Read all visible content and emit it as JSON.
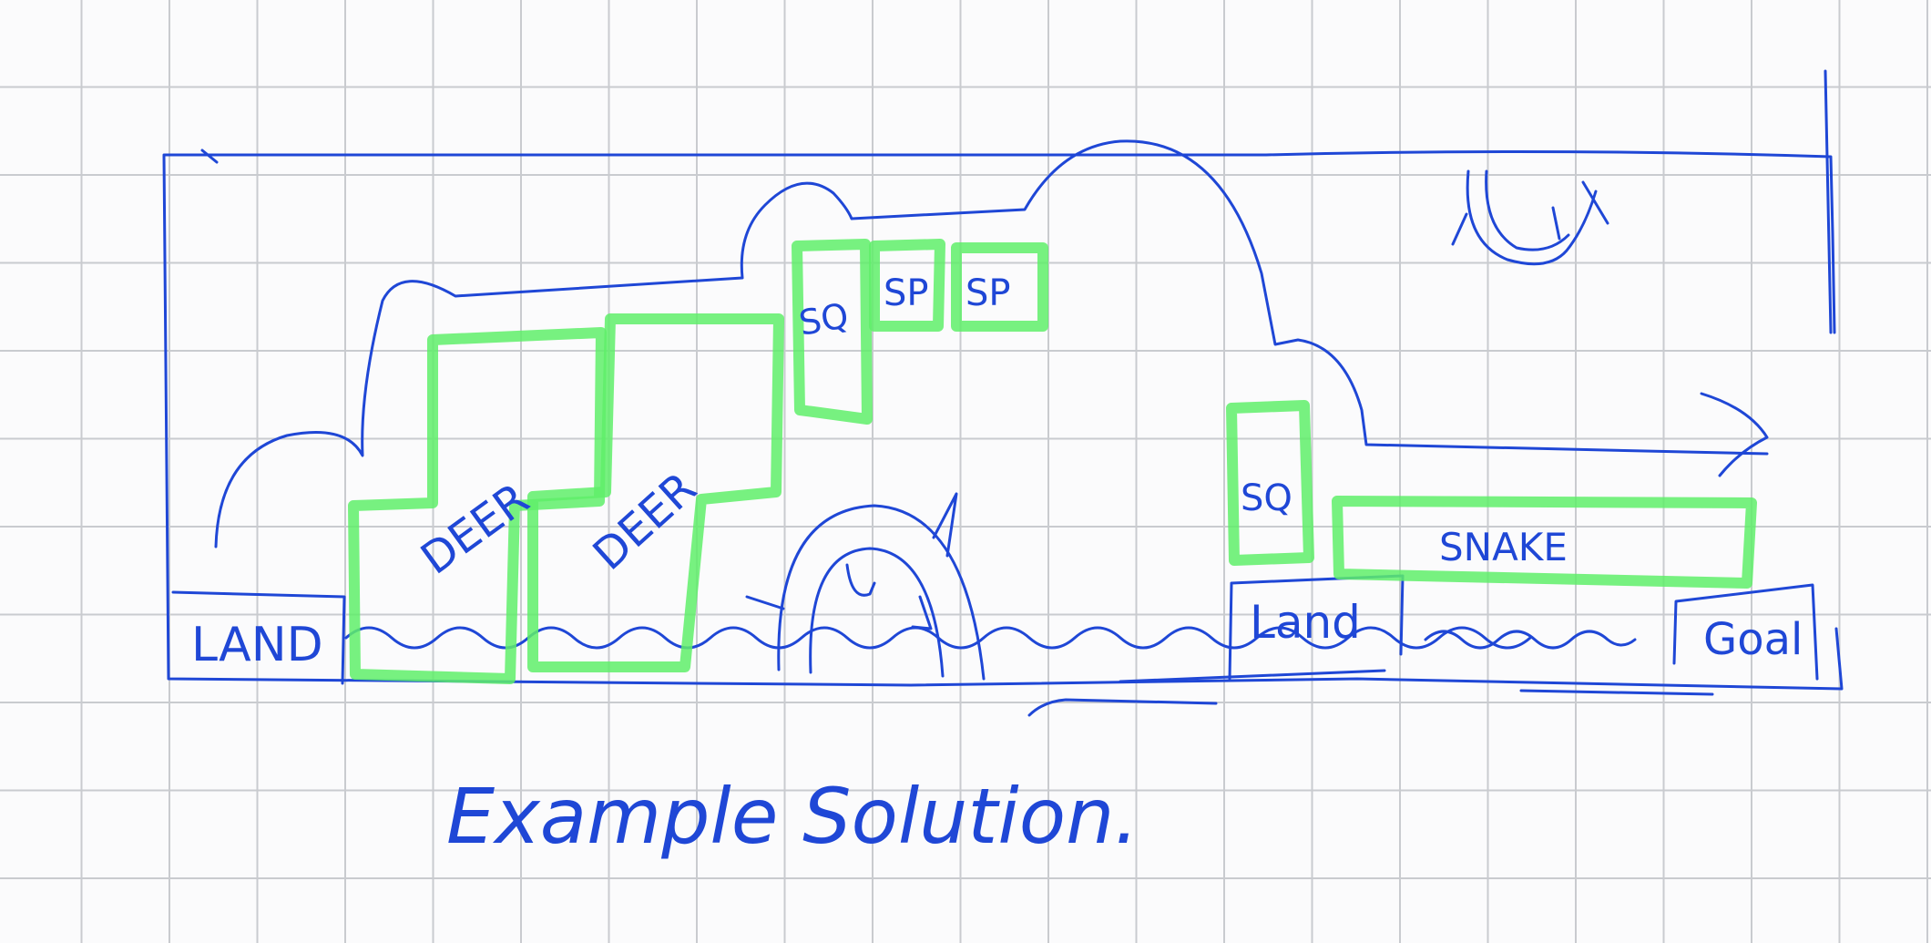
{
  "colors": {
    "ink": "#1f47d6",
    "highlight": "#5fee6a",
    "grid": "#c9cbcf",
    "paper": "#fbfbfc"
  },
  "labels": {
    "land_left": "LAND",
    "deer_1": "DEER",
    "deer_2": "DEER",
    "sq_top": "SQ",
    "sp_1": "SP",
    "sp_2": "SP",
    "sq_right": "SQ",
    "snake": "SNAKE",
    "land_right": "Land",
    "goal": "Goal"
  },
  "caption": "Example Solution."
}
